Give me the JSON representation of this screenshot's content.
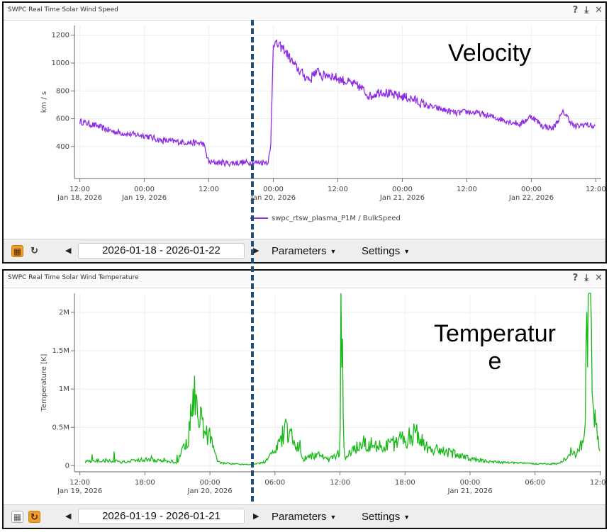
{
  "panels": [
    {
      "title": "SWPC Real Time Solar Wind Speed",
      "date_range": "2026-01-18 - 2026-01-22",
      "parameters_label": "Parameters",
      "settings_label": "Settings",
      "annotation": "Velocity",
      "icons": [
        "help-icon",
        "download-icon",
        "close-icon"
      ]
    },
    {
      "title": "SWPC Real Time Solar Wind Temperature",
      "date_range": "2026-01-19 - 2026-01-21",
      "parameters_label": "Parameters",
      "settings_label": "Settings",
      "annotation_line1": "Temperatur",
      "annotation_line2": "e",
      "icons": [
        "help-icon",
        "download-icon",
        "close-icon"
      ]
    }
  ],
  "colors": {
    "speed_line": "#8e2de2",
    "temp_line": "#18b918",
    "marker_line": "#1f4e79",
    "active_button": "#ef9d2b"
  },
  "chart_data": [
    {
      "type": "line",
      "title": "SWPC Real Time Solar Wind Speed",
      "ylabel": "km / s",
      "ylim": [
        170,
        1270
      ],
      "yticks": [
        400,
        600,
        800,
        1000,
        1200
      ],
      "ytick_labels": [
        "400",
        "600",
        "800",
        "1000",
        "1200"
      ],
      "x_range_hours": [
        -1,
        97
      ],
      "xticks_hours": [
        0,
        12,
        24,
        36,
        48,
        60,
        72,
        84,
        96
      ],
      "xtick_labels": [
        [
          "12:00",
          "Jan 18, 2026"
        ],
        [
          "00:00",
          "Jan 19, 2026"
        ],
        [
          "12:00",
          ""
        ],
        [
          "00:00",
          "Jan 20, 2026"
        ],
        [
          "12:00",
          ""
        ],
        [
          "00:00",
          "Jan 21, 2026"
        ],
        [
          "12:00",
          ""
        ],
        [
          "00:00",
          "Jan 22, 2026"
        ],
        [
          "12:00",
          ""
        ]
      ],
      "grid": true,
      "legend_position": "bottom",
      "series": [
        {
          "name": "swpc_rtsw_plasma_P1M / BulkSpeed",
          "x": [
            0,
            3,
            6,
            9,
            12,
            15,
            18,
            20,
            22,
            23,
            24,
            26,
            28,
            30,
            33,
            35,
            35.5,
            36,
            38,
            40,
            42,
            43,
            43.5,
            44,
            44.5,
            45,
            46,
            48,
            50,
            52,
            54,
            56,
            58,
            60,
            62,
            64,
            66,
            68,
            70,
            72,
            74,
            76,
            78,
            80,
            82,
            84,
            86,
            88,
            90,
            92,
            94,
            96
          ],
          "y": [
            580,
            550,
            510,
            490,
            480,
            445,
            435,
            430,
            425,
            420,
            285,
            285,
            280,
            285,
            285,
            290,
            380,
            1150,
            1100,
            980,
            900,
            880,
            940,
            920,
            950,
            900,
            920,
            890,
            860,
            830,
            760,
            800,
            770,
            760,
            740,
            700,
            680,
            660,
            640,
            650,
            640,
            620,
            600,
            580,
            560,
            620,
            550,
            530,
            650,
            540,
            560,
            540
          ]
        }
      ]
    },
    {
      "type": "line",
      "title": "SWPC Real Time Solar Wind Temperature",
      "ylabel": "Temperature [K]",
      "ylim": [
        -80000,
        2250000
      ],
      "yticks": [
        0,
        500000,
        1000000,
        1500000,
        2000000
      ],
      "ytick_labels": [
        "0",
        "0.5M",
        "1M",
        "1.5M",
        "2M"
      ],
      "x_range_hours": [
        -0.5,
        48.1
      ],
      "xticks_hours": [
        0,
        6,
        12,
        18,
        24,
        30,
        36,
        42,
        48
      ],
      "xtick_labels": [
        [
          "12:00",
          "Jan 19, 2026"
        ],
        [
          "18:00",
          ""
        ],
        [
          "00:00",
          "Jan 20, 2026"
        ],
        [
          "06:00",
          ""
        ],
        [
          "12:00",
          ""
        ],
        [
          "18:00",
          ""
        ],
        [
          "00:00",
          "Jan 21, 2026"
        ],
        [
          "06:00",
          ""
        ],
        [
          "12:00",
          ""
        ]
      ],
      "grid": true,
      "series": [
        {
          "name": "Temperature",
          "x": [
            0,
            2,
            4,
            6,
            8,
            9,
            10,
            10.5,
            11,
            12,
            12.5,
            13,
            14,
            16,
            17,
            18,
            19,
            20,
            20.5,
            21,
            22,
            23,
            24,
            24.1,
            24.4,
            26,
            28,
            30,
            31,
            32,
            34,
            36,
            38,
            40,
            42,
            44,
            46,
            46.5,
            47,
            47.5,
            48
          ],
          "y": [
            40000,
            60000,
            40000,
            70000,
            50000,
            40000,
            300000,
            800000,
            550000,
            300000,
            100000,
            30000,
            20000,
            10000,
            40000,
            150000,
            400000,
            250000,
            70000,
            90000,
            120000,
            60000,
            150000,
            2100000,
            80000,
            250000,
            200000,
            300000,
            350000,
            200000,
            150000,
            80000,
            40000,
            30000,
            20000,
            20000,
            150000,
            300000,
            2100000,
            500000,
            200000
          ]
        }
      ]
    }
  ]
}
